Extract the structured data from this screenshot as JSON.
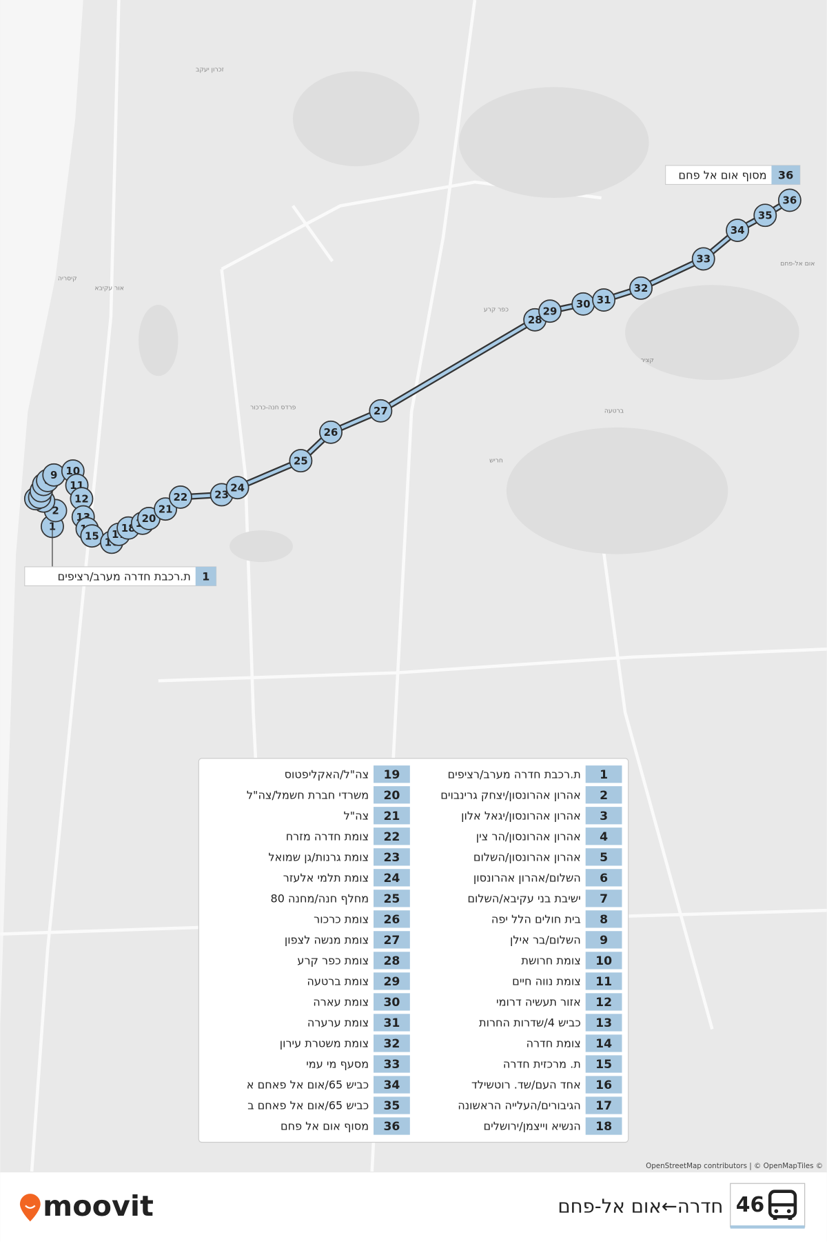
{
  "route": {
    "number": "46",
    "title": "חדרה←אום אל-פחם"
  },
  "brand": "moovit",
  "attribution": "OpenStreetMap contributors | © OpenMapTiles ©",
  "places": [
    {
      "name": "זכרון יעקב"
    },
    {
      "name": "קיסריה"
    },
    {
      "name": "אור עקיבא"
    },
    {
      "name": "כפר קרע"
    },
    {
      "name": "אום אל-פחם"
    },
    {
      "name": "חריש"
    },
    {
      "name": "פרדס חנה-כרכור"
    },
    {
      "name": "קציר"
    },
    {
      "name": "ברטעה"
    }
  ],
  "stops": [
    {
      "number": 1,
      "name": "ת.רכבת חדרה מערב/רציפים"
    },
    {
      "number": 2,
      "name": "אהרון אהרונסון/יצחק גרינבוים"
    },
    {
      "number": 3,
      "name": "אהרון אהרונסון/יגאל אלון"
    },
    {
      "number": 4,
      "name": "אהרון אהרונסון/הר צין"
    },
    {
      "number": 5,
      "name": "אהרון אהרונסון/השלום"
    },
    {
      "number": 6,
      "name": "השלום/אהרון אהרונסון"
    },
    {
      "number": 7,
      "name": "ישיבת בני עקיבא/השלום"
    },
    {
      "number": 8,
      "name": "בית חולים הלל יפה"
    },
    {
      "number": 9,
      "name": "השלום/בר אילן"
    },
    {
      "number": 10,
      "name": "צומת חרושת"
    },
    {
      "number": 11,
      "name": "צומת נווה חיים"
    },
    {
      "number": 12,
      "name": "אזור תעשיה דרומי"
    },
    {
      "number": 13,
      "name": "כביש 4/שדרות החרות"
    },
    {
      "number": 14,
      "name": "צומת חדרה"
    },
    {
      "number": 15,
      "name": "ת. מרכזית חדרה"
    },
    {
      "number": 16,
      "name": "אחד העם/שד. רוטשילד"
    },
    {
      "number": 17,
      "name": "הגיבורים/העלייה הראשונה"
    },
    {
      "number": 18,
      "name": "הנשיא וייצמן/ירושלים"
    },
    {
      "number": 19,
      "name": "צה\"ל/האקליפטוס"
    },
    {
      "number": 20,
      "name": "משרדי חברת חשמל/צה\"ל"
    },
    {
      "number": 21,
      "name": "צה\"ל"
    },
    {
      "number": 22,
      "name": "צומת חדרה מזרח"
    },
    {
      "number": 23,
      "name": "צומת גרנות/גן שמואל"
    },
    {
      "number": 24,
      "name": "צומת תלמי אלעזר"
    },
    {
      "number": 25,
      "name": "מחלף חנה/מחנה 80"
    },
    {
      "number": 26,
      "name": "צומת כרכור"
    },
    {
      "number": 27,
      "name": "צומת מנשה לצפון"
    },
    {
      "number": 28,
      "name": "צומת כפר קרע"
    },
    {
      "number": 29,
      "name": "צומת ברטעה"
    },
    {
      "number": 30,
      "name": "צומת עארה"
    },
    {
      "number": 31,
      "name": "צומת ערערה"
    },
    {
      "number": 32,
      "name": "צומת משטרת עירון"
    },
    {
      "number": 33,
      "name": "מסעף מי עמי"
    },
    {
      "number": 34,
      "name": "כביש 65/אום אל פאחם א"
    },
    {
      "number": 35,
      "name": "כביש 65/אום אל פאחם ב"
    },
    {
      "number": 36,
      "name": "מסוף אום אל פחם"
    }
  ]
}
